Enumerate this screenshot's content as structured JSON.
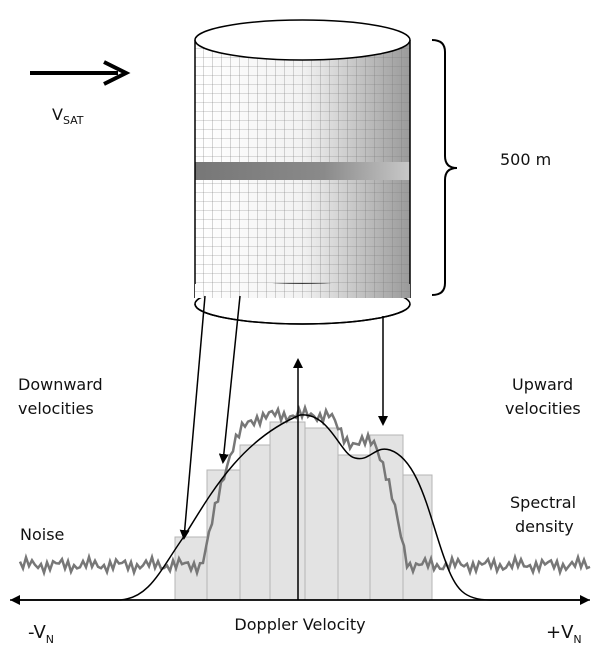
{
  "labels": {
    "satellite_velocity": {
      "symbol": "V",
      "subscript": "SAT"
    },
    "height": "500 m",
    "downward": [
      "Downward",
      "velocities"
    ],
    "upward": [
      "Upward",
      "velocities"
    ],
    "noise": "Noise",
    "spectral": [
      "Spectral",
      "density"
    ],
    "x_axis": "Doppler Velocity",
    "negative_limit": {
      "symbol": "-V",
      "subscript": "N"
    },
    "positive_limit": {
      "symbol": "+V",
      "subscript": "N"
    }
  }
}
